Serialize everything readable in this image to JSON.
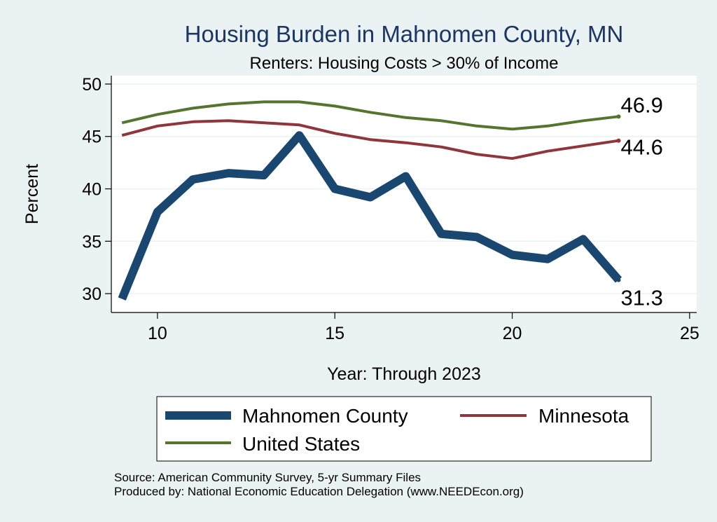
{
  "chart_data": {
    "type": "line",
    "title": "Housing Burden in Mahnomen County, MN",
    "subtitle": "Renters: Housing Costs > 30% of Income",
    "xlabel": "Year: Through 2023",
    "ylabel": "Percent",
    "xlim": [
      8.7,
      25.2
    ],
    "ylim": [
      28.2,
      50.8
    ],
    "xticks": [
      10,
      15,
      20,
      25
    ],
    "yticks": [
      30,
      35,
      40,
      45,
      50
    ],
    "grid": true,
    "legend_position": "bottom",
    "x": [
      9,
      10,
      11,
      12,
      13,
      14,
      15,
      16,
      17,
      18,
      19,
      20,
      21,
      22,
      23
    ],
    "series": [
      {
        "name": "Mahnomen County",
        "color": "#1a476f",
        "values": [
          29.5,
          37.8,
          40.9,
          41.5,
          41.3,
          45.1,
          40.0,
          39.2,
          41.2,
          35.7,
          35.4,
          33.7,
          33.3,
          35.2,
          31.3
        ],
        "end_label": "31.3"
      },
      {
        "name": "Minnesota",
        "color": "#90353b",
        "values": [
          45.1,
          46.0,
          46.4,
          46.5,
          46.3,
          46.1,
          45.3,
          44.7,
          44.4,
          44.0,
          43.3,
          42.9,
          43.6,
          44.1,
          44.6
        ],
        "end_label": "44.6"
      },
      {
        "name": "United States",
        "color": "#55752f",
        "values": [
          46.3,
          47.1,
          47.7,
          48.1,
          48.3,
          48.3,
          47.9,
          47.3,
          46.8,
          46.5,
          46.0,
          45.7,
          46.0,
          46.5,
          46.9
        ],
        "end_label": "46.9"
      }
    ]
  },
  "source_lines": [
    "Source: American Community Survey, 5-yr Summary Files",
    "Produced by: National Economic Education Delegation (www.NEEDEcon.org)"
  ]
}
